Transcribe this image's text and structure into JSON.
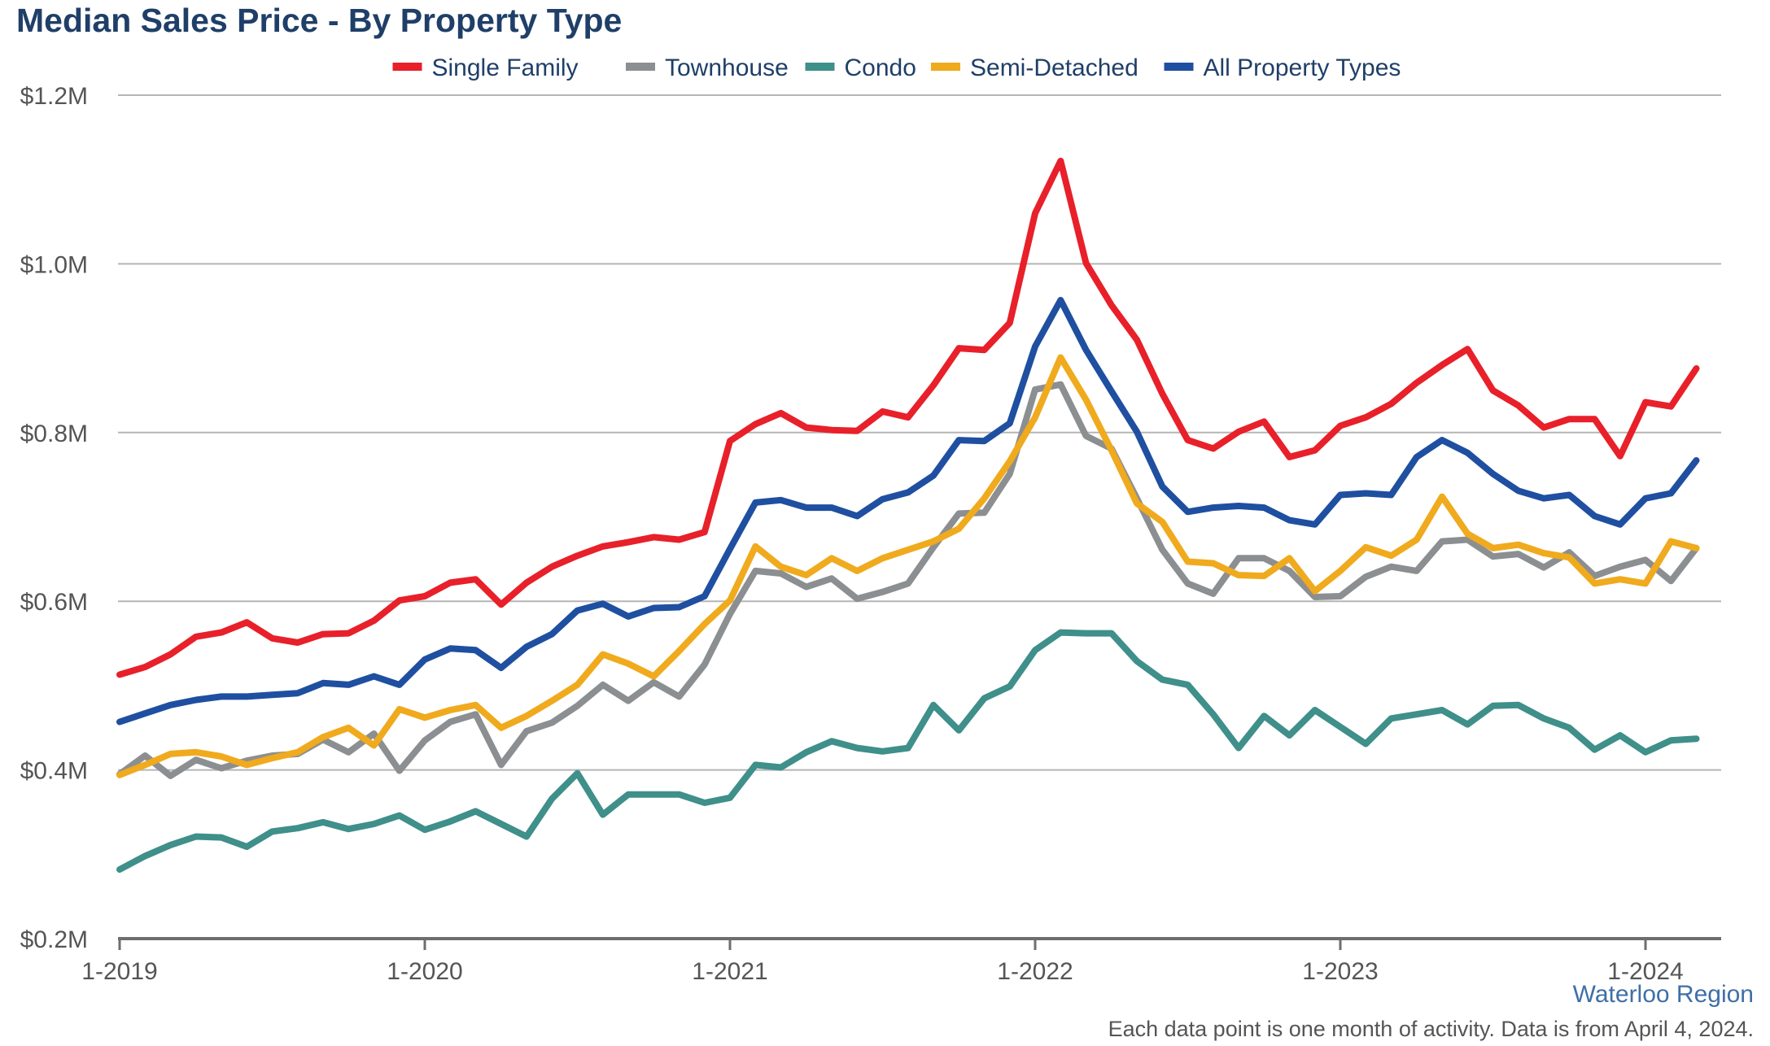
{
  "chart_data": {
    "type": "line",
    "title": "Median Sales Price - By Property Type",
    "subtitle": "Waterloo Region",
    "footnote": "Each data point is one month of activity. Data is from April 4, 2024.",
    "xlabel": "",
    "ylabel": "",
    "x_tick_labels": [
      "1-2019",
      "1-2020",
      "1-2021",
      "1-2022",
      "1-2023",
      "1-2024"
    ],
    "x_tick_months": [
      0,
      12,
      24,
      36,
      48,
      60
    ],
    "y_tick_labels": [
      "$0.2M",
      "$0.4M",
      "$0.6M",
      "$0.8M",
      "$1.0M",
      "$1.2M"
    ],
    "y_tick_values": [
      0.2,
      0.4,
      0.6,
      0.8,
      1.0,
      1.2
    ],
    "ylim": [
      0.2,
      1.2
    ],
    "x_first": "1-2019",
    "x_last": "3-2024",
    "grid": true,
    "legend_position": "top",
    "series": [
      {
        "name": "Single Family",
        "color": "#e8202a",
        "values": [
          0.513,
          0.522,
          0.537,
          0.558,
          0.563,
          0.575,
          0.556,
          0.551,
          0.561,
          0.562,
          0.577,
          0.601,
          0.606,
          0.622,
          0.626,
          0.596,
          0.622,
          0.641,
          0.654,
          0.665,
          0.67,
          0.676,
          0.673,
          0.682,
          0.79,
          0.81,
          0.823,
          0.806,
          0.803,
          0.802,
          0.825,
          0.818,
          0.856,
          0.9,
          0.898,
          0.93,
          1.06,
          1.122,
          1.001,
          0.951,
          0.91,
          0.846,
          0.791,
          0.781,
          0.801,
          0.813,
          0.771,
          0.779,
          0.808,
          0.818,
          0.834,
          0.859,
          0.88,
          0.899,
          0.85,
          0.832,
          0.806,
          0.816,
          0.816,
          0.772,
          0.836,
          0.831,
          0.876
        ]
      },
      {
        "name": "Townhouse",
        "color": "#8c8f91",
        "values": [
          0.395,
          0.417,
          0.393,
          0.412,
          0.402,
          0.411,
          0.417,
          0.419,
          0.436,
          0.421,
          0.443,
          0.399,
          0.435,
          0.457,
          0.466,
          0.406,
          0.446,
          0.456,
          0.476,
          0.501,
          0.482,
          0.504,
          0.487,
          0.525,
          0.585,
          0.636,
          0.633,
          0.617,
          0.627,
          0.603,
          0.611,
          0.621,
          0.664,
          0.704,
          0.705,
          0.751,
          0.851,
          0.857,
          0.796,
          0.781,
          0.722,
          0.661,
          0.621,
          0.609,
          0.651,
          0.651,
          0.636,
          0.605,
          0.606,
          0.629,
          0.641,
          0.636,
          0.671,
          0.673,
          0.653,
          0.656,
          0.64,
          0.658,
          0.63,
          0.641,
          0.649,
          0.624,
          0.663
        ]
      },
      {
        "name": "Condo",
        "color": "#3f8f8a",
        "values": [
          0.282,
          0.298,
          0.311,
          0.321,
          0.32,
          0.309,
          0.327,
          0.331,
          0.338,
          0.33,
          0.336,
          0.346,
          0.329,
          0.339,
          0.351,
          0.336,
          0.321,
          0.366,
          0.396,
          0.347,
          0.371,
          0.371,
          0.371,
          0.361,
          0.367,
          0.406,
          0.403,
          0.421,
          0.434,
          0.426,
          0.422,
          0.426,
          0.477,
          0.447,
          0.485,
          0.499,
          0.542,
          0.563,
          0.562,
          0.562,
          0.529,
          0.507,
          0.501,
          0.466,
          0.426,
          0.464,
          0.441,
          0.471,
          0.451,
          0.431,
          0.461,
          0.466,
          0.471,
          0.454,
          0.476,
          0.477,
          0.461,
          0.45,
          0.424,
          0.441,
          0.421,
          0.435,
          0.437
        ]
      },
      {
        "name": "Semi-Detached",
        "color": "#f0aa1d",
        "values": [
          0.394,
          0.406,
          0.419,
          0.421,
          0.416,
          0.406,
          0.414,
          0.421,
          0.439,
          0.45,
          0.429,
          0.472,
          0.462,
          0.471,
          0.477,
          0.45,
          0.464,
          0.482,
          0.501,
          0.537,
          0.526,
          0.511,
          0.541,
          0.573,
          0.601,
          0.665,
          0.641,
          0.631,
          0.651,
          0.636,
          0.651,
          0.661,
          0.671,
          0.686,
          0.722,
          0.766,
          0.818,
          0.889,
          0.839,
          0.779,
          0.716,
          0.694,
          0.647,
          0.645,
          0.631,
          0.63,
          0.651,
          0.612,
          0.636,
          0.664,
          0.654,
          0.673,
          0.724,
          0.68,
          0.663,
          0.667,
          0.657,
          0.652,
          0.621,
          0.626,
          0.621,
          0.671,
          0.663
        ]
      },
      {
        "name": "All Property Types",
        "color": "#1f4fa0",
        "values": [
          0.457,
          0.467,
          0.477,
          0.483,
          0.487,
          0.487,
          0.489,
          0.491,
          0.503,
          0.501,
          0.511,
          0.501,
          0.531,
          0.544,
          0.542,
          0.521,
          0.546,
          0.561,
          0.589,
          0.597,
          0.582,
          0.592,
          0.593,
          0.606,
          0.662,
          0.717,
          0.72,
          0.711,
          0.711,
          0.701,
          0.721,
          0.729,
          0.749,
          0.791,
          0.79,
          0.811,
          0.902,
          0.957,
          0.898,
          0.849,
          0.801,
          0.736,
          0.706,
          0.711,
          0.713,
          0.711,
          0.696,
          0.691,
          0.726,
          0.728,
          0.726,
          0.771,
          0.791,
          0.776,
          0.751,
          0.731,
          0.722,
          0.726,
          0.701,
          0.691,
          0.722,
          0.728,
          0.767
        ]
      }
    ]
  }
}
